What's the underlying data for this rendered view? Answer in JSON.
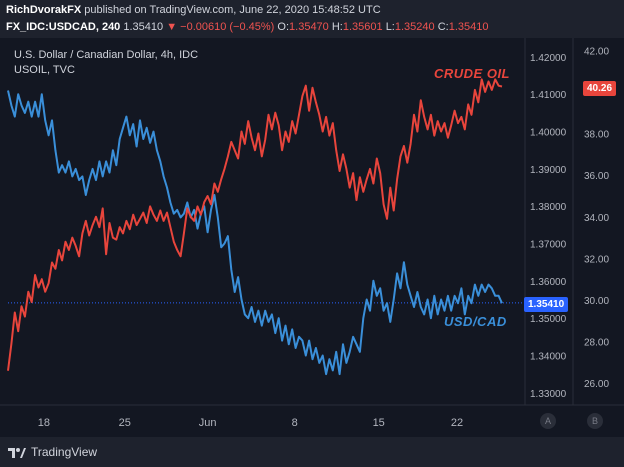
{
  "publish": {
    "author": "RichDvorakFX",
    "text": "published on TradingView.com, June 22, 2020 15:48:52 UTC"
  },
  "ohlc": {
    "symbol": "FX_IDC:USDCAD, 240",
    "last": "1.35410",
    "change": "▼ −0.00610 (−0.45%)",
    "open_label": "O:",
    "open": "1.35470",
    "high_label": "H:",
    "high": "1.35601",
    "low_label": "L:",
    "low": "1.35240",
    "close_label": "C:",
    "close": "1.35410"
  },
  "legend": {
    "title": "U.S. Dollar / Canadian Dollar, 4h, IDC",
    "sub": "USOIL, TVC"
  },
  "annotations": {
    "crude": "CRUDE OIL",
    "usdcad": "USD/CAD"
  },
  "badges": {
    "oil_last": "40.26",
    "usdcad_last": "1.35410"
  },
  "corners": {
    "a": "A",
    "b": "B"
  },
  "footer": {
    "brand": "TradingView"
  },
  "colors": {
    "usdcad": "#3a8fd9",
    "oil": "#e8453c",
    "oil_badge": "#e8453c",
    "usdcad_badge": "#2962ff",
    "background": "#131722"
  },
  "chart_data": {
    "type": "line",
    "x_ticks": [
      "18",
      "25",
      "Jun",
      "8",
      "15",
      "22"
    ],
    "y_left": {
      "label": "USD/CAD",
      "ticks": [
        "1.42000",
        "1.41000",
        "1.40000",
        "1.39000",
        "1.38000",
        "1.37000",
        "1.36000",
        "1.35000",
        "1.34000",
        "1.33000"
      ],
      "range": [
        1.327,
        1.424
      ]
    },
    "y_right": {
      "label": "USOIL",
      "ticks": [
        "42.00",
        "40.00",
        "38.00",
        "36.00",
        "34.00",
        "32.00",
        "30.00",
        "28.00",
        "26.00"
      ],
      "range": [
        25.0,
        42.4
      ]
    },
    "series": [
      {
        "name": "USD/CAD",
        "axis": "left",
        "values": [
          1.411,
          1.407,
          1.404,
          1.41,
          1.407,
          1.405,
          1.408,
          1.404,
          1.408,
          1.404,
          1.41,
          1.403,
          1.399,
          1.403,
          1.395,
          1.389,
          1.391,
          1.389,
          1.392,
          1.388,
          1.39,
          1.387,
          1.388,
          1.383,
          1.387,
          1.39,
          1.387,
          1.392,
          1.388,
          1.392,
          1.389,
          1.395,
          1.391,
          1.398,
          1.401,
          1.404,
          1.399,
          1.402,
          1.396,
          1.403,
          1.398,
          1.401,
          1.397,
          1.4,
          1.395,
          1.392,
          1.388,
          1.385,
          1.381,
          1.378,
          1.379,
          1.377,
          1.378,
          1.381,
          1.377,
          1.379,
          1.374,
          1.378,
          1.38,
          1.373,
          1.379,
          1.383,
          1.377,
          1.369,
          1.37,
          1.372,
          1.363,
          1.357,
          1.361,
          1.355,
          1.351,
          1.35,
          1.353,
          1.349,
          1.352,
          1.348,
          1.352,
          1.349,
          1.351,
          1.346,
          1.35,
          1.344,
          1.348,
          1.343,
          1.347,
          1.342,
          1.345,
          1.344,
          1.34,
          1.344,
          1.339,
          1.342,
          1.338,
          1.34,
          1.335,
          1.339,
          1.336,
          1.341,
          1.335,
          1.343,
          1.338,
          1.341,
          1.345,
          1.343,
          1.341,
          1.35,
          1.355,
          1.352,
          1.36,
          1.356,
          1.358,
          1.352,
          1.354,
          1.349,
          1.355,
          1.362,
          1.358,
          1.365,
          1.359,
          1.356,
          1.353,
          1.357,
          1.353,
          1.351,
          1.355,
          1.35,
          1.356,
          1.351,
          1.355,
          1.352,
          1.356,
          1.352,
          1.356,
          1.354,
          1.358,
          1.351,
          1.356,
          1.354,
          1.359,
          1.356,
          1.359,
          1.357,
          1.359,
          1.358,
          1.356,
          1.356,
          1.354
        ]
      },
      {
        "name": "CRUDE OIL",
        "axis": "right",
        "values": [
          26.6,
          27.9,
          29.4,
          28.5,
          29.7,
          29.2,
          30.4,
          29.9,
          31.2,
          30.6,
          31.0,
          30.4,
          30.8,
          31.8,
          31.5,
          32.4,
          31.9,
          32.8,
          32.4,
          33.0,
          32.6,
          32.1,
          33.2,
          33.8,
          33.1,
          33.6,
          34.0,
          33.5,
          34.4,
          32.2,
          33.7,
          33.0,
          32.9,
          33.5,
          33.2,
          33.8,
          33.4,
          34.1,
          33.6,
          33.9,
          34.2,
          33.7,
          34.5,
          34.1,
          33.8,
          34.3,
          33.8,
          34.2,
          33.5,
          32.8,
          32.4,
          32.1,
          33.2,
          34.4,
          34.0,
          33.8,
          34.5,
          34.1,
          34.7,
          35.0,
          34.6,
          35.6,
          35.2,
          35.8,
          36.3,
          36.9,
          37.6,
          37.2,
          36.8,
          38.1,
          37.5,
          38.6,
          37.8,
          37.2,
          38.0,
          36.9,
          37.7,
          38.9,
          38.2,
          39.0,
          38.4,
          37.2,
          38.1,
          37.6,
          38.6,
          38.0,
          38.9,
          39.8,
          40.3,
          39.1,
          40.2,
          39.5,
          38.9,
          38.1,
          38.8,
          37.9,
          38.5,
          37.2,
          36.2,
          37.0,
          36.3,
          35.4,
          36.1,
          34.8,
          35.9,
          35.2,
          35.8,
          36.3,
          35.6,
          36.8,
          36.1,
          34.6,
          33.9,
          35.4,
          34.3,
          35.8,
          36.9,
          37.4,
          36.6,
          37.5,
          38.9,
          38.1,
          39.6,
          38.8,
          38.2,
          38.9,
          37.9,
          38.6,
          38.1,
          38.5,
          37.8,
          38.4,
          39.1,
          38.5,
          38.8,
          38.2,
          39.4,
          38.9,
          40.1,
          39.5,
          40.6,
          40.0,
          40.5,
          40.1,
          40.6,
          40.3,
          40.26
        ]
      }
    ]
  }
}
